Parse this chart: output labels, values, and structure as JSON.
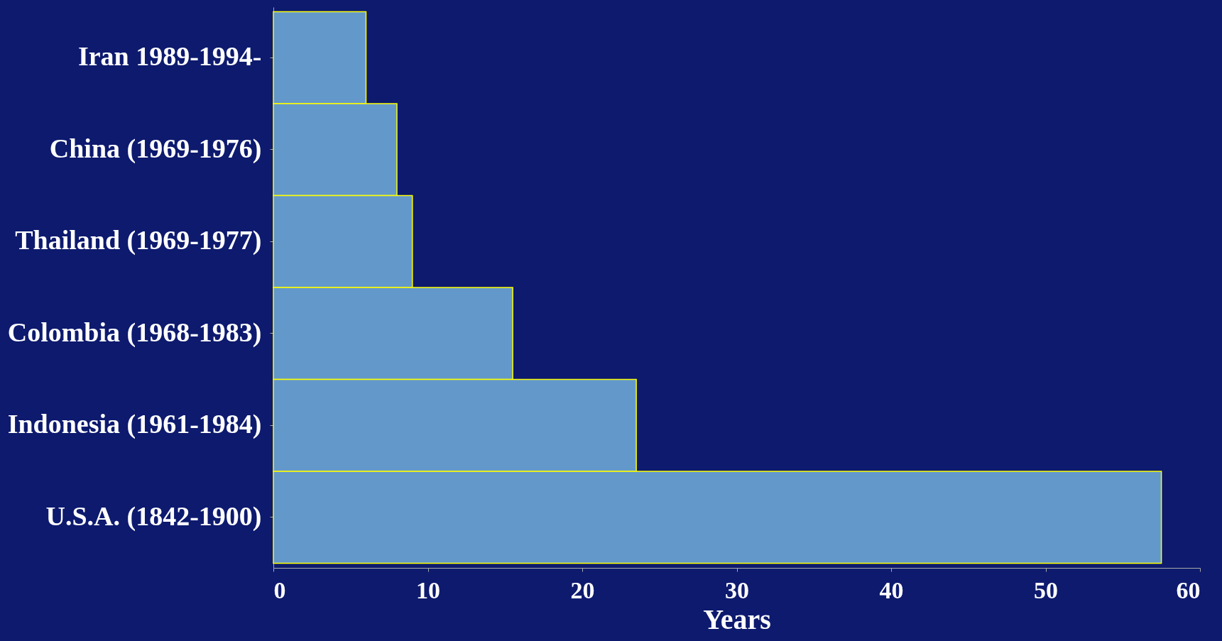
{
  "chart_data": {
    "type": "bar",
    "orientation": "horizontal",
    "xlabel": "Years",
    "categories": [
      "Iran 1989-1994-",
      "China (1969-1976)",
      "Thailand (1969-1977)",
      "Colombia (1968-1983)",
      "Indonesia (1961-1984)",
      "U.S.A. (1842-1900)"
    ],
    "values": [
      6,
      8,
      9,
      15.5,
      23.5,
      57.5
    ],
    "color": "#6398cb",
    "xlim": [
      0,
      60
    ],
    "xticks": [
      0,
      10,
      20,
      30,
      40,
      50,
      60
    ],
    "grid": false
  }
}
